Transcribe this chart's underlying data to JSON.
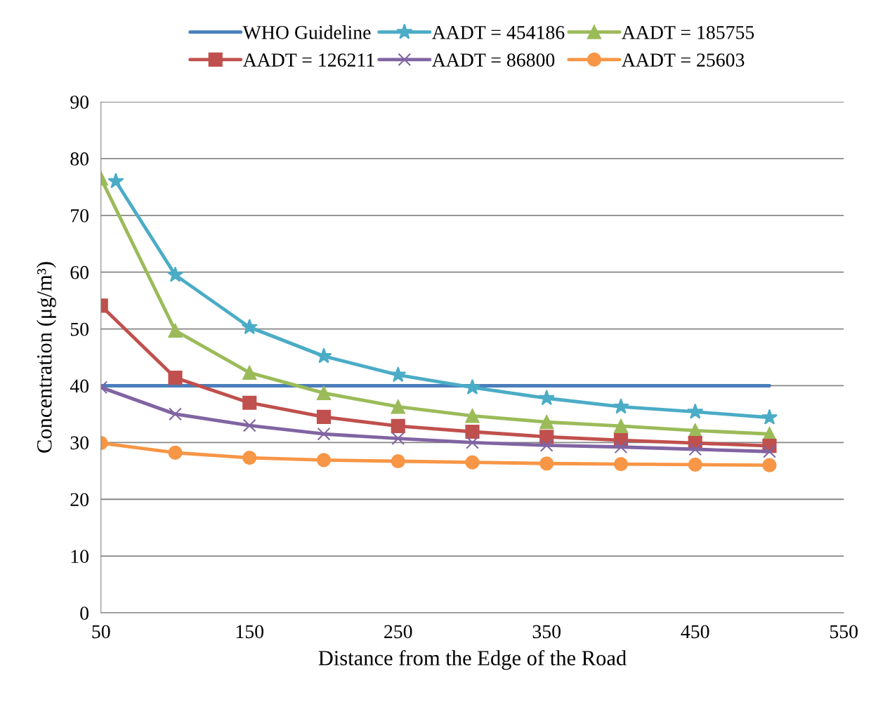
{
  "chart_data": {
    "type": "line",
    "xlabel": "Distance from the Edge of the Road",
    "ylabel": "Concentration (μg/m³)",
    "xlim": [
      50,
      550
    ],
    "xticks": [
      50,
      150,
      250,
      350,
      450,
      550
    ],
    "ylim": [
      0,
      90
    ],
    "yticks": [
      0,
      10,
      20,
      30,
      40,
      50,
      60,
      70,
      80,
      90
    ],
    "grid": "y",
    "legend": "top",
    "line_style": "solid",
    "series": [
      {
        "name": "WHO Guideline",
        "color": "#4a7ebb",
        "marker": "none",
        "x": [
          50,
          500
        ],
        "values": [
          40,
          40
        ]
      },
      {
        "name": "AADT = 454186",
        "color": "#4bacc6",
        "marker": "star",
        "x": [
          60,
          100,
          150,
          200,
          250,
          300,
          350,
          400,
          450,
          500
        ],
        "values": [
          76.0,
          59.5,
          50.3,
          45.2,
          41.9,
          39.7,
          37.8,
          36.3,
          35.4,
          34.4
        ]
      },
      {
        "name": "AADT = 185755",
        "color": "#9bbb59",
        "marker": "triangle",
        "x": [
          50,
          100,
          150,
          200,
          250,
          300,
          350,
          400,
          450,
          500
        ],
        "values": [
          76.5,
          49.7,
          42.3,
          38.7,
          36.3,
          34.7,
          33.6,
          32.9,
          32.1,
          31.5
        ]
      },
      {
        "name": "AADT = 126211",
        "color": "#c0504d",
        "marker": "square",
        "x": [
          50,
          100,
          150,
          200,
          250,
          300,
          350,
          400,
          450,
          500
        ],
        "values": [
          54.1,
          41.4,
          37.0,
          34.5,
          32.9,
          31.9,
          31.0,
          30.4,
          29.9,
          29.4
        ]
      },
      {
        "name": "AADT = 86800",
        "color": "#8064a2",
        "marker": "cross",
        "x": [
          50,
          100,
          150,
          200,
          250,
          300,
          350,
          400,
          450,
          500
        ],
        "values": [
          39.7,
          35.0,
          33.0,
          31.5,
          30.7,
          30.0,
          29.5,
          29.2,
          28.8,
          28.4
        ]
      },
      {
        "name": "AADT = 25603",
        "color": "#f79646",
        "marker": "circle",
        "x": [
          50,
          100,
          150,
          200,
          250,
          300,
          350,
          400,
          450,
          500
        ],
        "values": [
          29.9,
          28.2,
          27.3,
          26.9,
          26.7,
          26.5,
          26.3,
          26.2,
          26.1,
          26.0
        ]
      }
    ]
  }
}
